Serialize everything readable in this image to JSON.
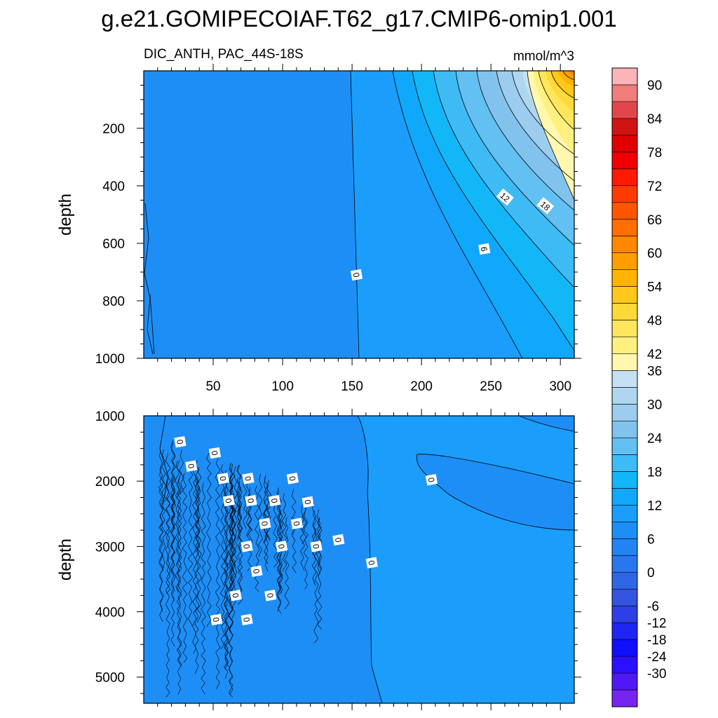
{
  "chart_data": [
    {
      "type": "contour",
      "title": "g.e21.GOMIPECOIAF.T62_g17.CMIP6-omip1.001",
      "variable_label": "DIC_ANTH, PAC_44S-18S",
      "units_label": "mmol/m^3",
      "ylabel": "depth",
      "xlabel": "",
      "xlim": [
        0,
        310
      ],
      "ylim": [
        0,
        1000
      ],
      "y_inverted": true,
      "x_ticks": [
        50,
        100,
        150,
        200,
        250,
        300
      ],
      "x_tick_labels": [
        "50",
        "100",
        "150",
        "200",
        "250",
        "300"
      ],
      "y_ticks": [
        200,
        400,
        600,
        800,
        1000
      ],
      "y_tick_labels": [
        "200",
        "400",
        "600",
        "800",
        "1000"
      ],
      "contour_labels": [
        {
          "text": "0",
          "x": 153,
          "y": 710
        },
        {
          "text": "6",
          "x": 245,
          "y": 620
        },
        {
          "text": "12",
          "x": 260,
          "y": 440
        },
        {
          "text": "18",
          "x": 289,
          "y": 470
        }
      ],
      "contour_interval": 3
    },
    {
      "type": "contour",
      "ylabel": "depth",
      "xlim": [
        0,
        310
      ],
      "ylim": [
        1000,
        5400
      ],
      "y_inverted": true,
      "y_ticks": [
        1000,
        2000,
        3000,
        4000,
        5000
      ],
      "y_tick_labels": [
        "1000",
        "2000",
        "3000",
        "4000",
        "5000"
      ],
      "contour_labels": [
        {
          "text": "0",
          "x": 26,
          "y": 1400
        },
        {
          "text": "0",
          "x": 51,
          "y": 1570
        },
        {
          "text": "0",
          "x": 34,
          "y": 1770
        },
        {
          "text": "0",
          "x": 57,
          "y": 1960
        },
        {
          "text": "0",
          "x": 75,
          "y": 1960
        },
        {
          "text": "0",
          "x": 107,
          "y": 1960
        },
        {
          "text": "0",
          "x": 61,
          "y": 2300
        },
        {
          "text": "0",
          "x": 77,
          "y": 2300
        },
        {
          "text": "0",
          "x": 94,
          "y": 2300
        },
        {
          "text": "0",
          "x": 118,
          "y": 2320
        },
        {
          "text": "0",
          "x": 87,
          "y": 2650
        },
        {
          "text": "0",
          "x": 110,
          "y": 2650
        },
        {
          "text": "0",
          "x": 74,
          "y": 3000
        },
        {
          "text": "0",
          "x": 99,
          "y": 3000
        },
        {
          "text": "0",
          "x": 124,
          "y": 3000
        },
        {
          "text": "0",
          "x": 140,
          "y": 2900
        },
        {
          "text": "0",
          "x": 81,
          "y": 3380
        },
        {
          "text": "0",
          "x": 164,
          "y": 3250
        },
        {
          "text": "0",
          "x": 66,
          "y": 3750
        },
        {
          "text": "0",
          "x": 91,
          "y": 3750
        },
        {
          "text": "0",
          "x": 52,
          "y": 4120
        },
        {
          "text": "0",
          "x": 74,
          "y": 4120
        },
        {
          "text": "0",
          "x": 207,
          "y": 1980
        }
      ]
    }
  ],
  "colorbar": {
    "tick_labels": [
      "90",
      "84",
      "78",
      "72",
      "66",
      "60",
      "54",
      "48",
      "42",
      "36",
      "30",
      "24",
      "18",
      "12",
      "6",
      "0",
      "-6",
      "-12",
      "-18",
      "-24",
      "-30"
    ],
    "colors": [
      "#fbb4b8",
      "#f07c7c",
      "#e2464b",
      "#d01414",
      "#e00000",
      "#f00000",
      "#ff1a00",
      "#ff3a00",
      "#ff5500",
      "#ff6e00",
      "#ff8800",
      "#ff9e00",
      "#ffb400",
      "#ffc81a",
      "#ffd93a",
      "#ffe65c",
      "#fff080",
      "#fff8ae",
      "#c4e1f4",
      "#aed6ef",
      "#9ccdee",
      "#82c3ee",
      "#62c0f2",
      "#3ebbf5",
      "#12b7f8",
      "#10a8fa",
      "#1a9dfb",
      "#1e8ef7",
      "#2284f3",
      "#2877ee",
      "#2e66e6",
      "#3355e0",
      "#2f3fe6",
      "#1f25f2",
      "#1010ff",
      "#2a10ff",
      "#5018f4",
      "#7824f0"
    ]
  }
}
